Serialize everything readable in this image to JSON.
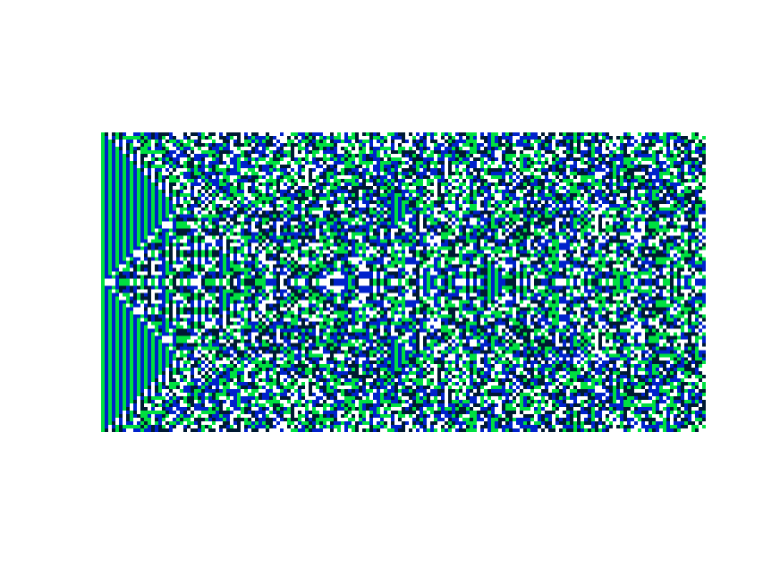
{
  "palette": [
    "#00e040",
    "#0022cc",
    "#ffffff",
    "#001a33"
  ]
}
